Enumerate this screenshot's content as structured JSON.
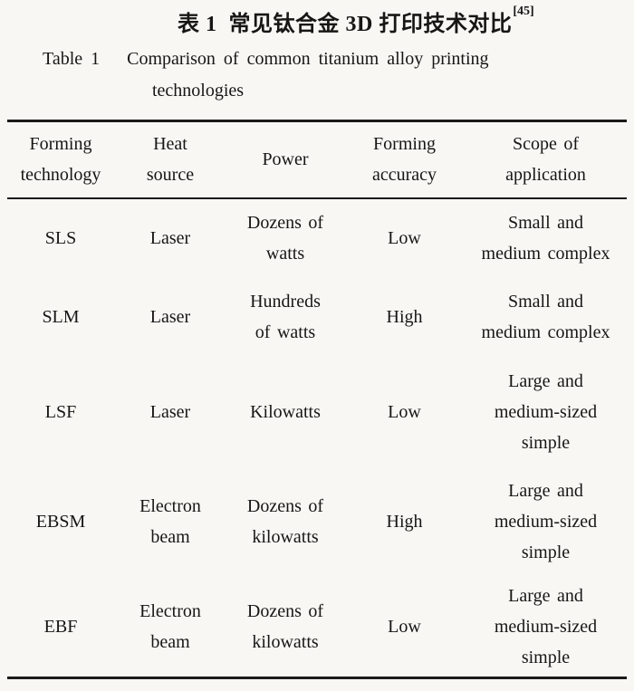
{
  "titles": {
    "chinese": {
      "label": "表 1",
      "text": "常见钛合金 3D 打印技术对比",
      "citation": "[45]"
    },
    "english": {
      "label": "Table 1",
      "line1": "Comparison of common titanium alloy printing",
      "line2": "technologies"
    }
  },
  "table": {
    "columns": [
      {
        "name": "Forming technology",
        "lines": [
          "Forming",
          "technology"
        ]
      },
      {
        "name": "Heat source",
        "lines": [
          "Heat",
          "source"
        ]
      },
      {
        "name": "Power",
        "lines": [
          "Power"
        ]
      },
      {
        "name": "Forming accuracy",
        "lines": [
          "Forming",
          "accuracy"
        ]
      },
      {
        "name": "Scope of application",
        "lines": [
          "Scope of",
          "application"
        ]
      }
    ],
    "rows": [
      {
        "technology": "SLS",
        "cells": [
          [
            "SLS"
          ],
          [
            "Laser"
          ],
          [
            "Dozens of",
            "watts"
          ],
          [
            "Low"
          ],
          [
            "Small and",
            "medium complex"
          ]
        ]
      },
      {
        "technology": "SLM",
        "cells": [
          [
            "SLM"
          ],
          [
            "Laser"
          ],
          [
            "Hundreds",
            "of watts"
          ],
          [
            "High"
          ],
          [
            "Small and",
            "medium complex"
          ]
        ]
      },
      {
        "technology": "LSF",
        "cells": [
          [
            "LSF"
          ],
          [
            "Laser"
          ],
          [
            "Kilowatts"
          ],
          [
            "Low"
          ],
          [
            "Large and",
            "medium-sized",
            "simple"
          ]
        ]
      },
      {
        "technology": "EBSM",
        "cells": [
          [
            "EBSM"
          ],
          [
            "Electron",
            "beam"
          ],
          [
            "Dozens of",
            "kilowatts"
          ],
          [
            "High"
          ],
          [
            "Large and",
            "medium-sized",
            "simple"
          ]
        ]
      },
      {
        "technology": "EBF",
        "cells": [
          [
            "EBF"
          ],
          [
            "Electron",
            "beam"
          ],
          [
            "Dozens of",
            "kilowatts"
          ],
          [
            "Low"
          ],
          [
            "Large and",
            "medium-sized",
            "simple"
          ]
        ]
      }
    ]
  },
  "colors": {
    "background": "#f8f7f4",
    "text": "#181614",
    "rule": "#1c1a18"
  }
}
